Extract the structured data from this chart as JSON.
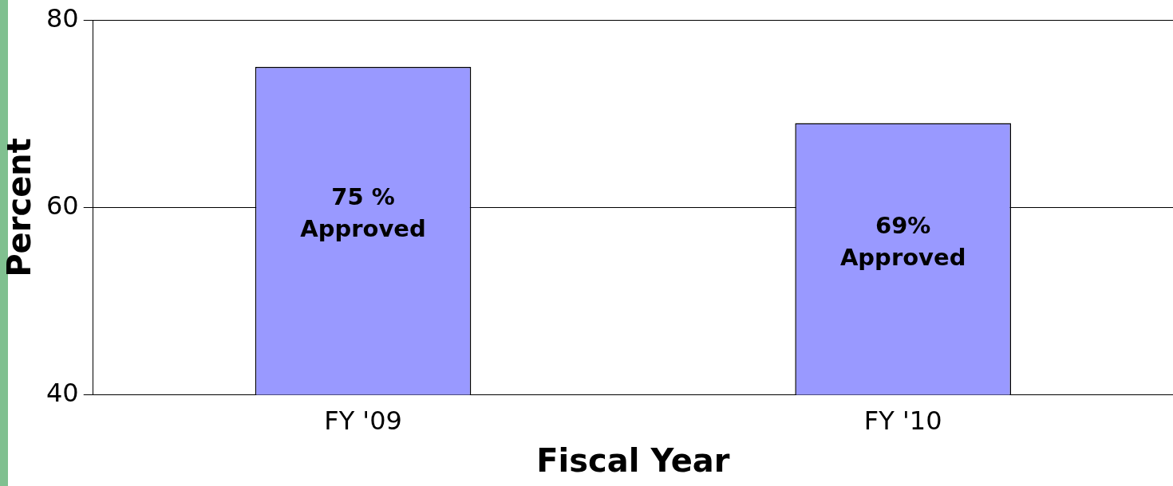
{
  "chart_data": {
    "type": "bar",
    "xlabel": "Fiscal Year",
    "ylabel": "Percent",
    "categories": [
      "FY '09",
      "FY '10"
    ],
    "values": [
      75,
      69
    ],
    "value_labels": [
      "75 %\nApproved",
      "69%\nApproved"
    ],
    "color": "#9999ff",
    "ylim": [
      40,
      80
    ],
    "yticks": [
      40,
      60,
      80
    ],
    "grid": "y"
  }
}
